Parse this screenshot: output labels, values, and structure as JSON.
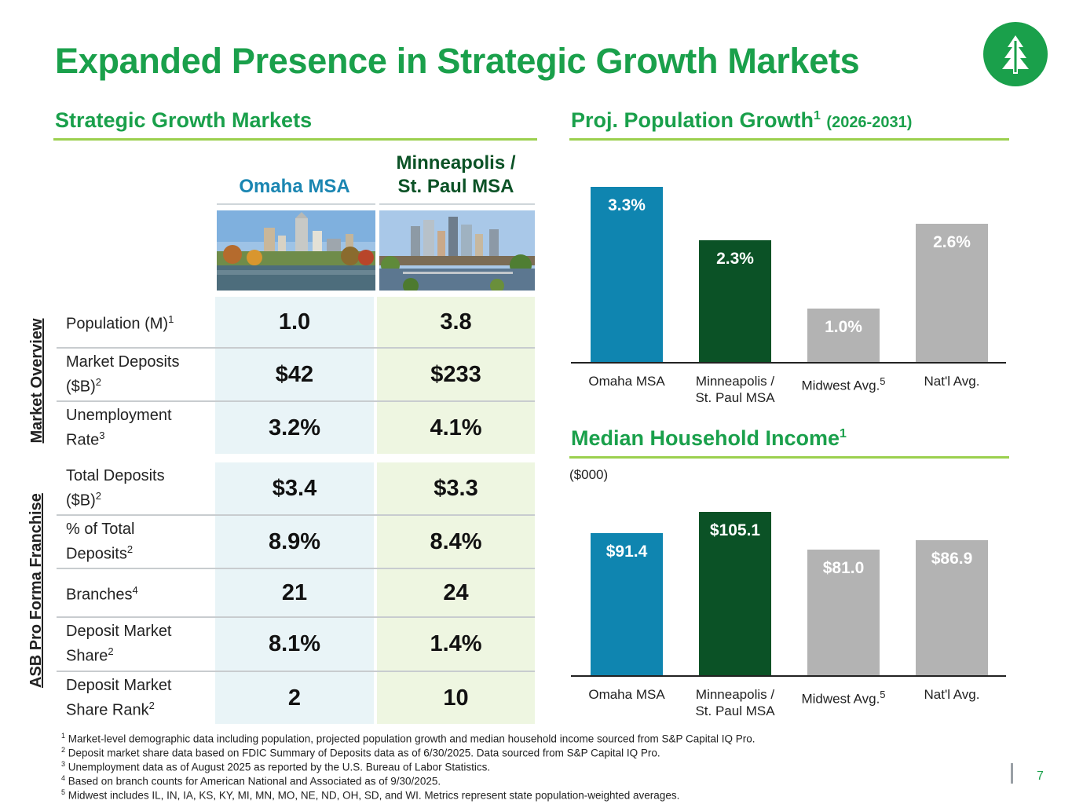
{
  "title": "Expanded Presence in Strategic Growth Markets",
  "colors": {
    "brand_green": "#1aa04b",
    "omaha_blue": "#0f85b0",
    "mpls_green": "#0b5226",
    "avg_gray": "#b3b3b3",
    "rule_green": "#9bd04e"
  },
  "logo_icon": "tree-logo-icon",
  "left": {
    "heading": "Strategic Growth Markets",
    "col_omaha": "Omaha MSA",
    "col_mpls_line1": "Minneapolis /",
    "col_mpls_line2": "St. Paul MSA",
    "group_market": "Market Overview",
    "group_asb": "ASB Pro Forma Franchise",
    "rows": [
      {
        "label_l1": "Population (M)",
        "label_sup": "1",
        "label_l2": "",
        "omaha": "1.0",
        "mpls": "3.8"
      },
      {
        "label_l1": "Market Deposits",
        "label_l2": "($B)",
        "label_sup": "2",
        "omaha": "$42",
        "mpls": "$233"
      },
      {
        "label_l1": "Unemployment",
        "label_l2": "Rate",
        "label_sup": "3",
        "omaha": "3.2%",
        "mpls": "4.1%"
      },
      {
        "label_l1": "Total Deposits",
        "label_l2": "($B)",
        "label_sup": "2",
        "omaha": "$3.4",
        "mpls": "$3.3"
      },
      {
        "label_l1": "% of Total",
        "label_l2": "Deposits",
        "label_sup": "2",
        "omaha": "8.9%",
        "mpls": "8.4%"
      },
      {
        "label_l1": "Branches",
        "label_sup": "4",
        "label_l2": "",
        "omaha": "21",
        "mpls": "24"
      },
      {
        "label_l1": "Deposit Market",
        "label_l2": "Share",
        "label_sup": "2",
        "omaha": "8.1%",
        "mpls": "1.4%"
      },
      {
        "label_l1": "Deposit Market",
        "label_l2": "Share Rank",
        "label_sup": "2",
        "omaha": "2",
        "mpls": "10"
      }
    ]
  },
  "pop_heading": {
    "main": "Proj. Population Growth",
    "sup": "1",
    "sub": "(2026-2031)"
  },
  "income_heading": {
    "main": "Median Household Income",
    "sup": "1"
  },
  "income_units": "($000)",
  "categories": [
    {
      "l1": "Omaha MSA",
      "l2": "",
      "sup": ""
    },
    {
      "l1": "Minneapolis /",
      "l2": "St. Paul MSA",
      "sup": ""
    },
    {
      "l1": "Midwest Avg.",
      "l2": "",
      "sup": "5"
    },
    {
      "l1": "Nat'l Avg.",
      "l2": "",
      "sup": ""
    }
  ],
  "chart_data": [
    {
      "type": "bar",
      "title": "Proj. Population Growth (2026-2031)",
      "categories": [
        "Omaha MSA",
        "Minneapolis / St. Paul MSA",
        "Midwest Avg.",
        "Nat'l Avg."
      ],
      "values": [
        3.3,
        2.3,
        1.0,
        2.6
      ],
      "labels": [
        "3.3%",
        "2.3%",
        "1.0%",
        "2.6%"
      ],
      "ylim": [
        0,
        3.3
      ],
      "colors": [
        "#0f85b0",
        "#0b5226",
        "#b3b3b3",
        "#b3b3b3"
      ]
    },
    {
      "type": "bar",
      "title": "Median Household Income",
      "ylabel": "($000)",
      "categories": [
        "Omaha MSA",
        "Minneapolis / St. Paul MSA",
        "Midwest Avg.",
        "Nat'l Avg."
      ],
      "values": [
        91.4,
        105.1,
        81.0,
        86.9
      ],
      "labels": [
        "$91.4",
        "$105.1",
        "$81.0",
        "$86.9"
      ],
      "ylim": [
        0,
        105.1
      ],
      "colors": [
        "#0f85b0",
        "#0b5226",
        "#b3b3b3",
        "#b3b3b3"
      ]
    }
  ],
  "footnotes": [
    {
      "n": "1",
      "text": "Market-level demographic data including population, projected population growth and median household income sourced from S&P Capital IQ Pro."
    },
    {
      "n": "2",
      "text": "Deposit market share data based on FDIC Summary of Deposits data as of 6/30/2025. Data sourced from S&P Capital IQ Pro."
    },
    {
      "n": "3",
      "text": "Unemployment data as of August 2025 as reported by the U.S. Bureau of Labor Statistics."
    },
    {
      "n": "4",
      "text": "Based on branch counts for American National and Associated as of 9/30/2025."
    },
    {
      "n": "5",
      "text": "Midwest includes IL, IN, IA, KS, KY, MI, MN, MO, NE, ND, OH, SD, and WI. Metrics represent state population-weighted averages."
    }
  ],
  "page_number": "7"
}
